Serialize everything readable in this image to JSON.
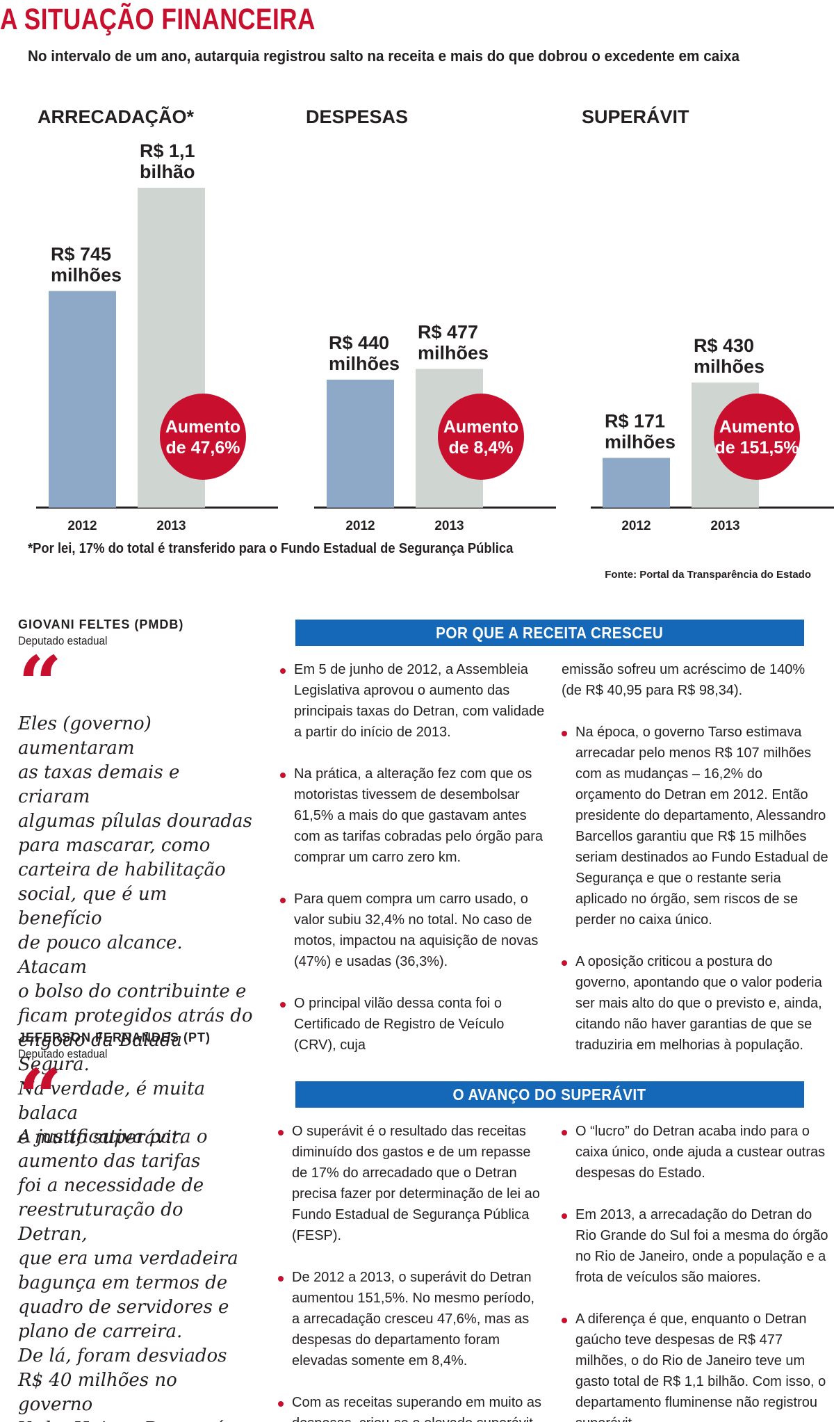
{
  "title": "A SITUAÇÃO FINANCEIRA",
  "subtitle": "No intervalo de um ano, autarquia registrou salto na receita e mais do que dobrou o excedente em caixa",
  "colors": {
    "accent_red": "#c8102e",
    "bar_2012": "#8ea9c8",
    "bar_2013": "#cfd6d2",
    "header_blue": "#1567b7"
  },
  "chart_data": [
    {
      "type": "bar",
      "title": "ARRECADAÇÃO*",
      "categories": [
        "2012",
        "2013"
      ],
      "values": [
        745,
        1100
      ],
      "unit": "R$ milhões",
      "value_labels": [
        "R$ 745 milhões",
        "R$ 1,1 bilhão"
      ],
      "badge": [
        "Aumento",
        "de 47,6%"
      ]
    },
    {
      "type": "bar",
      "title": "DESPESAS",
      "categories": [
        "2012",
        "2013"
      ],
      "values": [
        440,
        477
      ],
      "unit": "R$ milhões",
      "value_labels": [
        "R$ 440 milhões",
        "R$ 477 milhões"
      ],
      "badge": [
        "Aumento",
        "de 8,4%"
      ]
    },
    {
      "type": "bar",
      "title": "SUPERÁVIT",
      "categories": [
        "2012",
        "2013"
      ],
      "values": [
        171,
        430
      ],
      "unit": "R$ milhões",
      "value_labels": [
        "R$ 171 milhões",
        "R$ 430 milhões"
      ],
      "badge": [
        "Aumento",
        "de 151,5%"
      ]
    }
  ],
  "footnote": "*Por lei, 17% do total é transferido para o Fundo Estadual de Segurança Pública",
  "source": "Fonte: Portal da Transparência do Estado",
  "quotes": [
    {
      "name": "GIOVANI FELTES (PMDB)",
      "role": "Deputado estadual",
      "mark": "“",
      "text": "Eles (governo) aumentaram\nas taxas demais e criaram\nalgumas pílulas douradas\npara mascarar, como\ncarteira de habilitação\nsocial, que é um benefício\nde pouco alcance. Atacam\no bolso do contribuinte e\nficam protegidos atrás do\nengodo da Balada Segura.\nNa verdade, é muita balaca\ne muito superávit."
    },
    {
      "name": "JEFERSON FERNANDES (PT)",
      "role": "Deputado estadual",
      "mark": "“",
      "text": "A justificativa para o\naumento das tarifas\nfoi a necessidade de\nreestruturação do Detran,\nque era uma verdadeira\nbagunça em termos de\nquadro de servidores e\nplano de carreira.\nDe lá, foram desviados\nR$ 40 milhões no governo\nYeda. Hoje, o Detran é um\nórgão muito melhor."
    }
  ],
  "sections": [
    {
      "header": "POR QUE A RECEITA CRESCEU",
      "left": [
        "Em 5 de junho de 2012, a Assembleia Legislativa aprovou o aumento das principais taxas do Detran, com validade a partir do início de 2013.",
        "Na prática, a alteração fez com que os motoristas tivessem de desembolsar 61,5% a mais do que gastavam antes com as tarifas cobradas pelo órgão para comprar um carro zero km.",
        "Para quem compra um carro usado, o valor subiu 32,4% no total. No caso de motos, impactou na aquisição de novas (47%) e usadas (36,3%).",
        "O principal vilão dessa conta foi o Certificado de Registro de Veículo (CRV), cuja"
      ],
      "right": [
        "emissão sofreu um acréscimo de 140% (de R$ 40,95 para R$ 98,34).",
        "Na época, o governo Tarso estimava arrecadar pelo menos R$ 107 milhões com as mudanças – 16,2% do orçamento do Detran em 2012. Então presidente do departamento, Alessandro Barcellos garantiu que R$ 15 milhões seriam destinados ao Fundo Estadual de Segurança e que o restante seria aplicado no órgão, sem riscos de se perder no caixa único.",
        "A oposição criticou a postura do governo, apontando que o valor poderia ser mais alto do que o previsto e, ainda, citando não haver garantias de que se traduziria em melhorias à população."
      ]
    },
    {
      "header": "O AVANÇO DO SUPERÁVIT",
      "left": [
        "O superávit é o resultado das receitas diminuído dos gastos e de um repasse de 17% do arrecadado que o Detran precisa fazer por determinação de lei ao Fundo Estadual de Segurança Pública (FESP).",
        "De 2012 a 2013, o superávit do Detran aumentou 151,5%. No mesmo período, a arrecadação cresceu 47,6%, mas as despesas do departamento foram elevadas somente em 8,4%.",
        "Com as receitas superando em muito as despesas, criou-se o elevado superávit."
      ],
      "right": [
        "O “lucro” do Detran acaba indo para o caixa único, onde ajuda a custear outras despesas do Estado.",
        "Em 2013, a arrecadação do Detran do Rio Grande do Sul foi a mesma do órgão no Rio de Janeiro, onde a população e a frota de veículos são maiores.",
        "A diferença é que, enquanto o Detran gaúcho teve despesas de R$ 477 milhões, o do Rio de Janeiro teve um gasto total de R$ 1,1 bilhão. Com isso, o departamento fluminense não registrou superávit."
      ]
    }
  ]
}
